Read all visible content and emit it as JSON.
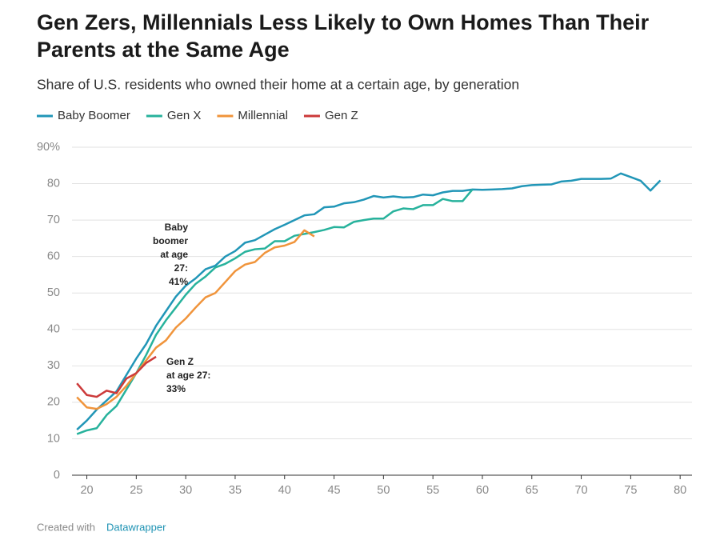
{
  "chart_data": {
    "type": "line",
    "title": [
      "Gen Zers, Millennials Less Likely to Own Homes Than Their",
      "Parents at the Same Age"
    ],
    "subtitle": "Share of U.S. residents who owned their home at a certain age, by generation",
    "x": [
      19,
      20,
      21,
      22,
      23,
      24,
      25,
      26,
      27,
      28,
      29,
      30,
      31,
      32,
      33,
      34,
      35,
      36,
      37,
      38,
      39,
      40,
      41,
      42,
      43,
      44,
      45,
      46,
      47,
      48,
      49,
      50,
      51,
      52,
      53,
      54,
      55,
      56,
      57,
      58,
      59,
      60,
      61,
      62,
      63,
      64,
      65,
      66,
      67,
      68,
      69,
      70,
      71,
      72,
      73,
      74,
      75,
      76,
      77,
      78
    ],
    "series": [
      {
        "name": "Baby Boomer",
        "color": "#2196b7",
        "values": [
          12.5,
          15,
          18,
          20.5,
          23,
          27.5,
          32,
          36,
          41,
          45,
          49,
          52,
          54,
          56.5,
          57.5,
          60,
          61.5,
          63.8,
          64.5,
          66,
          67.5,
          68.7,
          70,
          71.3,
          71.6,
          73.5,
          73.7,
          74.6,
          74.9,
          75.6,
          76.6,
          76.2,
          76.5,
          76.2,
          76.3,
          77,
          76.8,
          77.6,
          78,
          78,
          78.4,
          78.3,
          78.4,
          78.5,
          78.7,
          79.3,
          79.6,
          79.7,
          79.8,
          80.6,
          80.8,
          81.3,
          81.3,
          81.3,
          81.4,
          82.8,
          81.8,
          80.8,
          78.1,
          80.9
        ]
      },
      {
        "name": "Gen X",
        "color": "#27b29c",
        "values": [
          11.3,
          12.3,
          12.9,
          16.5,
          19,
          23.5,
          28,
          33,
          38.5,
          42.5,
          46,
          49.5,
          52.5,
          54.5,
          57,
          58,
          59.5,
          61.3,
          62,
          62.2,
          64.2,
          64.2,
          65.7,
          66.2,
          66.7,
          67.3,
          68.1,
          68,
          69.5,
          70,
          70.4,
          70.4,
          72.4,
          73.2,
          73,
          74.1,
          74.1,
          75.8,
          75.2,
          75.2,
          78.4,
          null,
          null,
          null,
          null,
          null,
          null,
          null,
          null,
          null,
          null,
          null,
          null,
          null,
          null,
          null,
          null,
          null,
          null,
          null
        ]
      },
      {
        "name": "Millennial",
        "color": "#f0943b",
        "values": [
          21.4,
          18.6,
          18.2,
          19.5,
          21.5,
          24.5,
          28,
          31.5,
          35,
          37,
          40.5,
          43,
          46,
          48.8,
          50,
          53,
          56,
          57.8,
          58.5,
          61,
          62.5,
          63,
          64,
          67.2,
          65.5,
          null,
          null,
          null,
          null,
          null,
          null,
          null,
          null,
          null,
          null,
          null,
          null,
          null,
          null,
          null,
          null,
          null,
          null,
          null,
          null,
          null,
          null,
          null,
          null,
          null,
          null,
          null,
          null,
          null,
          null,
          null,
          null,
          null,
          null,
          null
        ]
      },
      {
        "name": "Gen Z",
        "color": "#cc3a3a",
        "values": [
          25.2,
          22,
          21.5,
          23.2,
          22.5,
          26.5,
          28,
          30.8,
          32.5,
          null,
          null,
          null,
          null,
          null,
          null,
          null,
          null,
          null,
          null,
          null,
          null,
          null,
          null,
          null,
          null,
          null,
          null,
          null,
          null,
          null,
          null,
          null,
          null,
          null,
          null,
          null,
          null,
          null,
          null,
          null,
          null,
          null,
          null,
          null,
          null,
          null,
          null,
          null,
          null,
          null,
          null,
          null,
          null,
          null,
          null,
          null,
          null,
          null,
          null,
          null
        ]
      }
    ],
    "xlim": [
      18.5,
      81.2
    ],
    "ylim": [
      0,
      90
    ],
    "xticks": [
      20,
      25,
      30,
      35,
      40,
      45,
      50,
      55,
      60,
      65,
      70,
      75,
      80
    ],
    "yticks": [
      0,
      10,
      20,
      30,
      40,
      50,
      60,
      70,
      80,
      {
        "value": 90,
        "label": "90%"
      }
    ],
    "grid": true,
    "annotations": [
      [
        "Baby",
        "boomer",
        "at age",
        "27:",
        "41%"
      ],
      [
        "Gen Z",
        "at age 27:",
        "33%"
      ]
    ],
    "footer": {
      "text": "Created with",
      "link": "Datawrapper"
    }
  }
}
